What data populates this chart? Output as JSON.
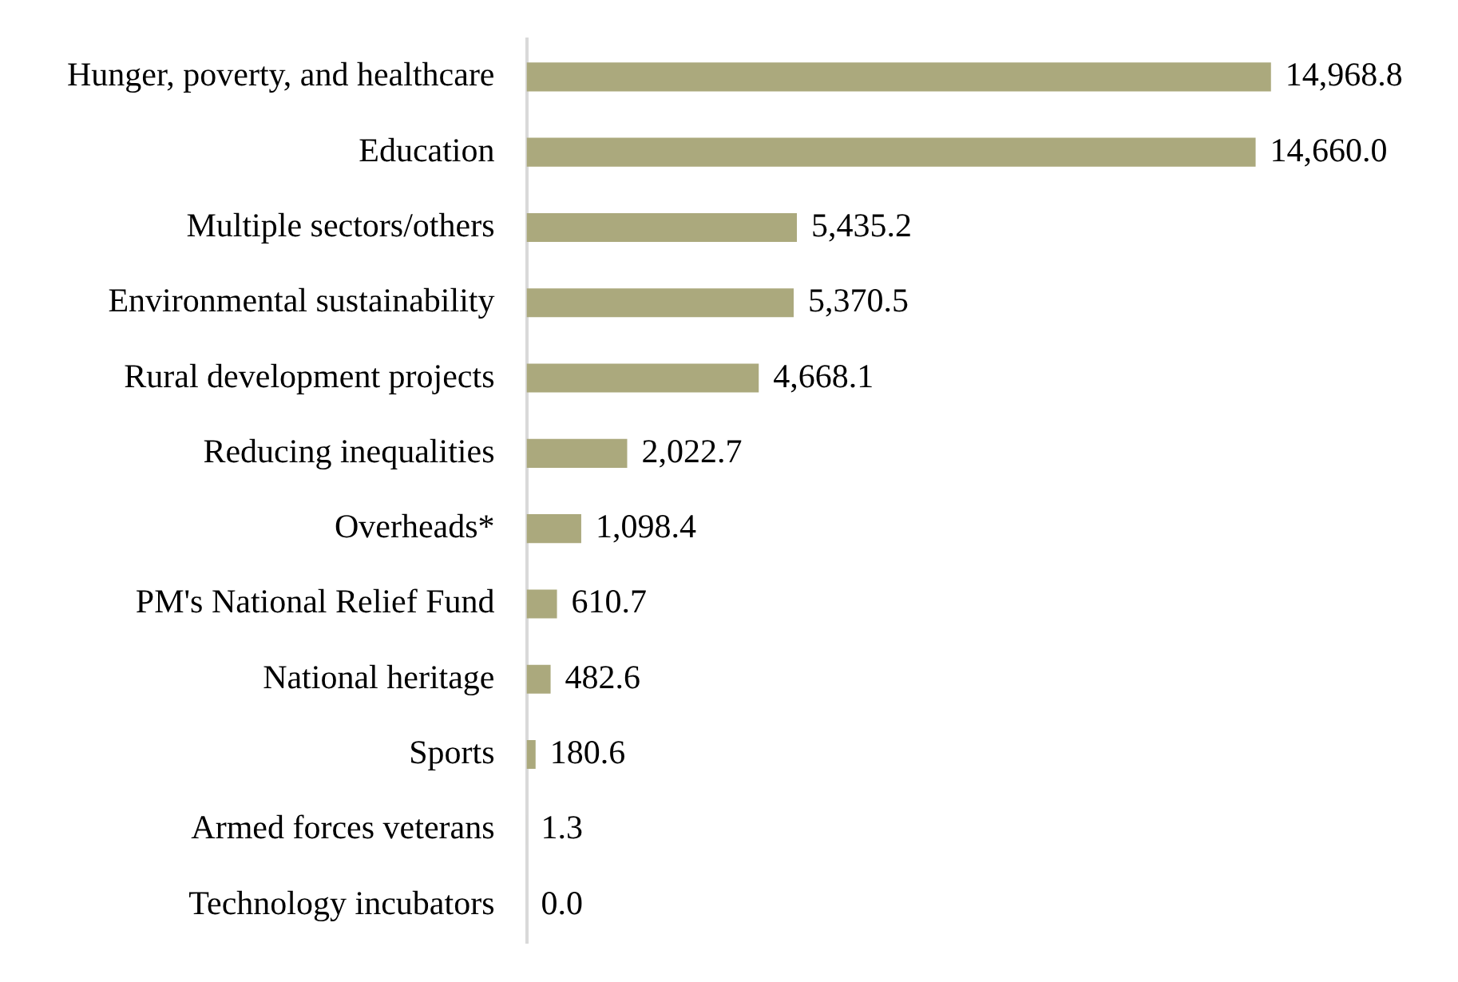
{
  "chart_data": {
    "type": "bar",
    "orientation": "horizontal",
    "categories": [
      "Hunger, poverty, and healthcare",
      "Education",
      "Multiple sectors/others",
      "Environmental sustainability",
      "Rural development projects",
      "Reducing inequalities",
      "Overheads*",
      "PM's National Relief Fund",
      "National heritage",
      "Sports",
      "Armed forces veterans",
      "Technology incubators"
    ],
    "values": [
      14968.8,
      14660.0,
      5435.2,
      5370.5,
      4668.1,
      2022.7,
      1098.4,
      610.7,
      482.6,
      180.6,
      1.3,
      0.0
    ],
    "value_labels": [
      "14,968.8",
      "14,660.0",
      "5,435.2",
      "5,370.5",
      "4,668.1",
      "2,022.7",
      "1,098.4",
      "610.7",
      "482.6",
      "180.6",
      "1.3",
      "0.0"
    ],
    "color": "#aba97d"
  }
}
